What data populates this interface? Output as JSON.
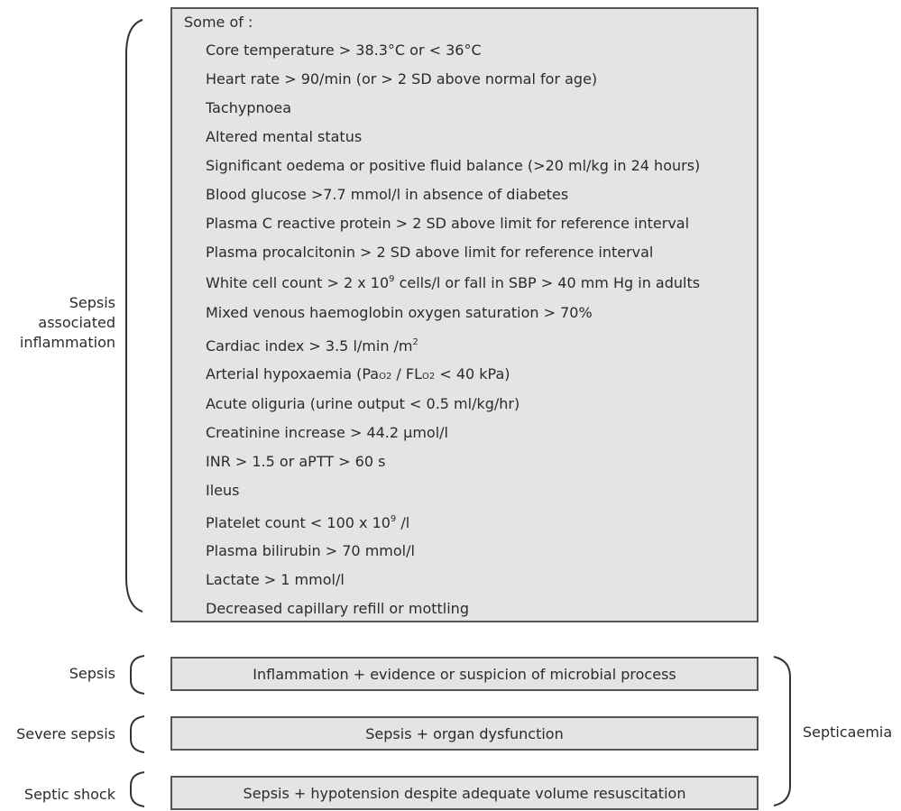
{
  "inflammation": {
    "label": "Sepsis associated inflammation",
    "heading": "Some of :",
    "criteria": {
      "core_temp": "Core temperature > 38.3°C or < 36°C",
      "heart_rate": "Heart rate > 90/min (or > 2 SD above normal for age)",
      "tachypnoea": "Tachypnoea",
      "mental_status": "Altered mental status",
      "oedema": "Significant oedema or positive fluid balance (>20 ml/kg in 24 hours)",
      "glucose": "Blood glucose >7.7 mmol/l in absence of diabetes",
      "crp": "Plasma C reactive protein > 2 SD above limit for reference interval",
      "procalcitonin": "Plasma procalcitonin > 2 SD above limit for reference interval",
      "wcc": {
        "before": "White cell count > 2 x 10",
        "exp": "9",
        "after": " cells/l or fall in SBP > 40 mm Hg in adults"
      },
      "venous_sat": "Mixed venous haemoglobin oxygen saturation > 70%",
      "cardiac_index": {
        "before": "Cardiac index > 3.5 l/min /m",
        "exp": "2"
      },
      "hypoxaemia": {
        "before": "Arterial hypoxaemia (Pa",
        "sub1": "O2",
        "mid": " / FL",
        "sub2": "O2",
        "after": " < 40 kPa)"
      },
      "oliguria": "Acute oliguria (urine output < 0.5 ml/kg/hr)",
      "creatinine": "Creatinine increase > 44.2 µmol/l",
      "inr": "INR > 1.5 or aPTT > 60 s",
      "ileus": "Ileus",
      "platelets": {
        "before": "Platelet count < 100 x 10",
        "exp": "9",
        "after": " /l"
      },
      "bilirubin": "Plasma bilirubin > 70 mmol/l",
      "lactate": "Lactate > 1 mmol/l",
      "capillary": "Decreased capillary refill or mottling"
    }
  },
  "categories": {
    "sepsis": {
      "label": "Sepsis",
      "definition": "Inflammation + evidence or suspicion of microbial process"
    },
    "severe_sepsis": {
      "label": "Severe sepsis",
      "definition": "Sepsis + organ dysfunction"
    },
    "septic_shock": {
      "label": "Septic shock",
      "definition": "Sepsis + hypotension despite adequate volume resuscitation"
    }
  },
  "group_label": "Septicaemia",
  "colors": {
    "box_fill": "#e4e4e4",
    "box_border": "#555555",
    "bracket": "#333333",
    "text": "#2b2b2b"
  }
}
